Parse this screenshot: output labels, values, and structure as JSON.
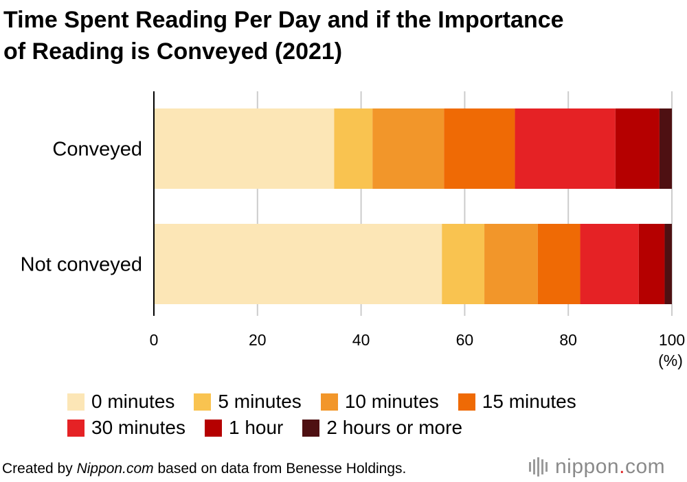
{
  "title_line1": "Time Spent Reading Per Day and if the Importance",
  "title_line2": "of Reading is Conveyed (2021)",
  "source": {
    "prefix": "Created by ",
    "site": "Nippon.com",
    "suffix": " based on data from Benesse Holdings."
  },
  "brand": {
    "name": "nippon",
    "dot": ".",
    "tld": "com"
  },
  "chart_data": {
    "type": "bar",
    "orientation": "horizontal",
    "stacked": true,
    "title": "Time Spent Reading Per Day and if the Importance of Reading is Conveyed (2021)",
    "categories": [
      "Conveyed",
      "Not conveyed"
    ],
    "xlim": [
      0,
      100
    ],
    "xticks": [
      0,
      20,
      40,
      60,
      80,
      100
    ],
    "xunit": "(%)",
    "grid": true,
    "legend_position": "bottom",
    "series": [
      {
        "name": "0 minutes",
        "color": "#fce6b6",
        "values": [
          34.8,
          55.6
        ]
      },
      {
        "name": "5 minutes",
        "color": "#f9c350",
        "values": [
          7.4,
          8.2
        ]
      },
      {
        "name": "10 minutes",
        "color": "#f2962a",
        "values": [
          13.8,
          10.3
        ]
      },
      {
        "name": "15 minutes",
        "color": "#ef6a05",
        "values": [
          13.7,
          8.2
        ]
      },
      {
        "name": "30 minutes",
        "color": "#e52225",
        "values": [
          19.4,
          11.3
        ]
      },
      {
        "name": "1 hour",
        "color": "#b50000",
        "values": [
          8.5,
          5.0
        ]
      },
      {
        "name": "2 hours or more",
        "color": "#4e1012",
        "values": [
          2.4,
          1.4
        ]
      }
    ]
  }
}
